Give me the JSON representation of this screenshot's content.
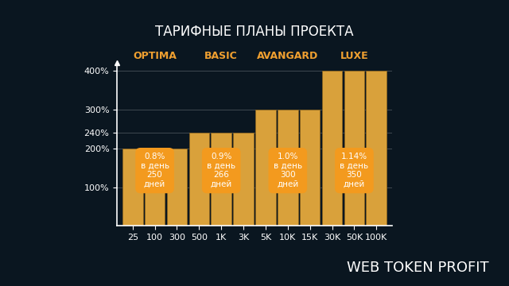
{
  "chart_data": {
    "type": "bar",
    "title": "ТАРИФНЫЕ ПЛАНЫ ПРОЕКТА",
    "categories": [
      "25",
      "100",
      "300",
      "500",
      "1K",
      "3K",
      "5K",
      "10K",
      "15K",
      "30K",
      "50K",
      "100K"
    ],
    "values": [
      200,
      200,
      200,
      240,
      240,
      240,
      300,
      300,
      300,
      400,
      400,
      400
    ],
    "color": "#d9a13b",
    "groups": [
      {
        "name": "OPTIMA",
        "categories": [
          "25",
          "100",
          "300"
        ],
        "annotation": "0.8%\nв день\n250\nдней"
      },
      {
        "name": "BASIC",
        "categories": [
          "500",
          "1K",
          "3K"
        ],
        "annotation": "0.9%\nв день\n266\nдней"
      },
      {
        "name": "AVANGARD",
        "categories": [
          "5K",
          "10K",
          "15K"
        ],
        "annotation": "1.0%\nв день\n300\nдней"
      },
      {
        "name": "LUXE",
        "categories": [
          "30K",
          "50K",
          "100K"
        ],
        "annotation": "1.14%\nв день\n350\nдней"
      }
    ],
    "ylim": [
      0,
      420
    ],
    "yticks": [
      {
        "value": 100,
        "label": "100%"
      },
      {
        "value": 200,
        "label": "200%"
      },
      {
        "value": 240,
        "label": "240%"
      },
      {
        "value": 300,
        "label": "300%"
      },
      {
        "value": 400,
        "label": "400%"
      }
    ],
    "grid": true,
    "footer": "WEB TOKEN PROFIT"
  }
}
